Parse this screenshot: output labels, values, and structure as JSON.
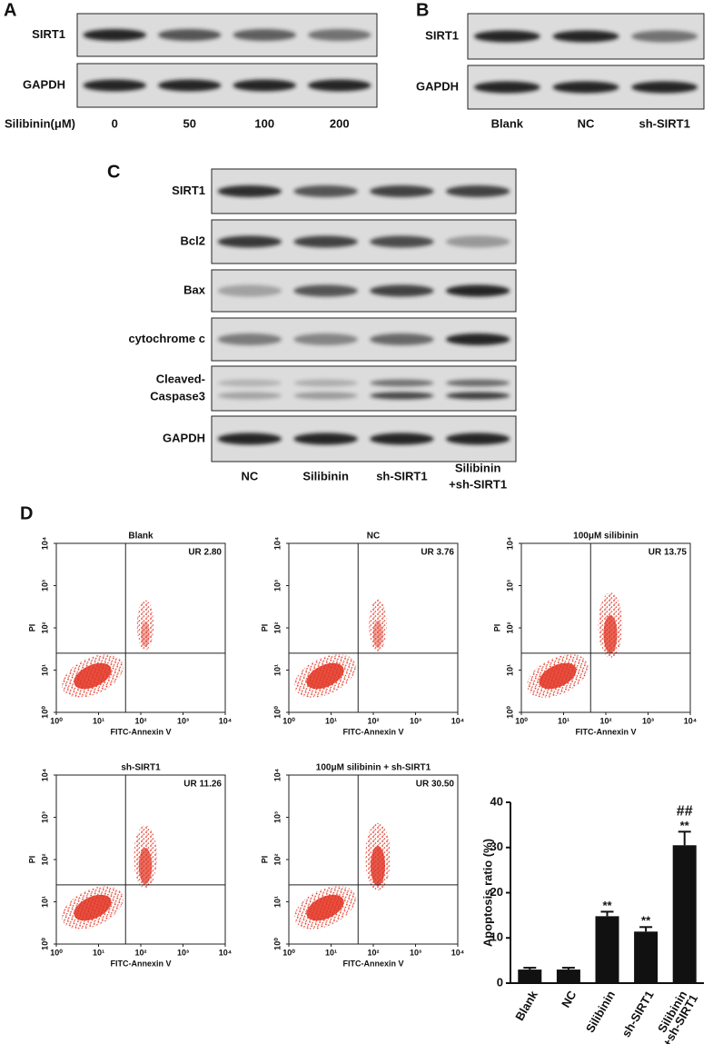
{
  "figure": {
    "A": {
      "label": "A",
      "rows": [
        "SIRT1",
        "GAPDH"
      ],
      "lane_title": "Silibinin(μM)",
      "lanes": [
        "0",
        "50",
        "100",
        "200"
      ]
    },
    "B": {
      "label": "B",
      "rows": [
        "SIRT1",
        "GAPDH"
      ],
      "lanes": [
        "Blank",
        "NC",
        "sh-SIRT1"
      ]
    },
    "C": {
      "label": "C",
      "rows": [
        "SIRT1",
        "Bcl2",
        "Bax",
        "cytochrome c",
        [
          "Cleaved-",
          "Caspase3"
        ],
        "GAPDH"
      ],
      "lanes": [
        "NC",
        "Silibinin",
        "sh-SIRT1",
        [
          "Silibinin",
          "+sh-SIRT1"
        ]
      ]
    },
    "D": {
      "label": "D",
      "x_label": "FITC-Annexin V",
      "y_label": "PI",
      "ticks": [
        {
          "value": 1,
          "label": "10⁰"
        },
        {
          "value": 10,
          "label": "10¹"
        },
        {
          "value": 100,
          "label": "10²"
        },
        {
          "value": 1000,
          "label": "10³"
        },
        {
          "value": 10000,
          "label": "10⁴"
        }
      ],
      "lim": [
        1,
        10000
      ],
      "flow_plots": [
        {
          "title": "Blank",
          "ur_label": "UR 2.80"
        },
        {
          "title": "NC",
          "ur_label": "UR 3.76"
        },
        {
          "title": "100μM silibinin",
          "ur_label": "UR 13.75"
        },
        {
          "title": "sh-SIRT1",
          "ur_label": "UR 11.26"
        },
        {
          "title": "100μM silibinin + sh-SIRT1",
          "ur_label": "UR 30.50"
        }
      ]
    }
  },
  "chart_data": {
    "type": "bar",
    "y_label": "Apoptosis ratio (%)",
    "categories": [
      "Blank",
      "NC",
      "Silibinin",
      "sh-SIRT1",
      [
        "Silibinin",
        "+sh-SIRT1"
      ]
    ],
    "values": [
      3,
      3,
      14.8,
      11.4,
      30.5
    ],
    "errors": [
      0.4,
      0.4,
      1,
      1,
      3
    ],
    "annotations": [
      null,
      null,
      "**",
      "**",
      "**"
    ],
    "annotations2": [
      null,
      null,
      null,
      null,
      "##"
    ],
    "color": "#111111",
    "ylim": [
      0,
      40
    ],
    "yticks": [
      0,
      10,
      20,
      30,
      40
    ]
  }
}
